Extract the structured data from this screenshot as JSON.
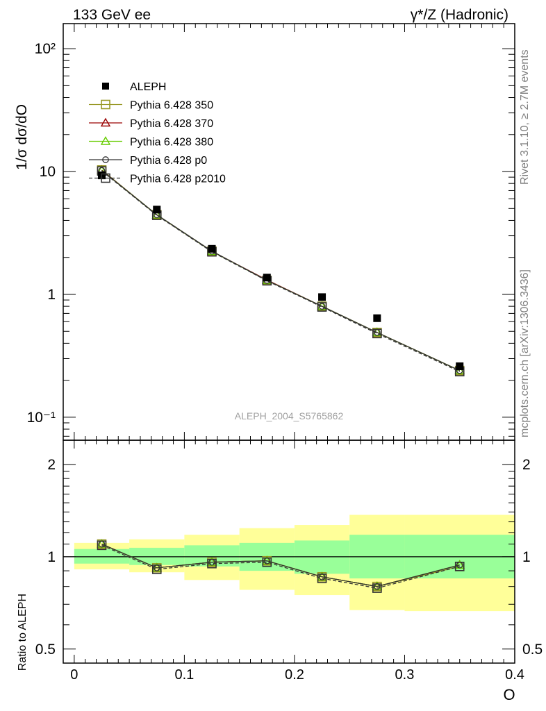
{
  "header": {
    "left": "133 GeV ee",
    "right": "γ*/Z (Hadronic)"
  },
  "side_labels": {
    "rivet": "Rivet 3.1.10, ≥ 2.7M events",
    "mcplots": "mcplots.cern.ch [arXiv:1306.3436]"
  },
  "watermark": "ALEPH_2004_S5765862",
  "colors": {
    "data": "#000000",
    "p350": "#999926",
    "p370": "#990000",
    "p380": "#66cc00",
    "p0": "#333333",
    "p2010": "#333333",
    "band_inner": "#99ff99",
    "band_outer": "#ffff99"
  },
  "chart_data": [
    {
      "type": "line",
      "ylabel": "1/σ  dσ/dO",
      "yscale": "log",
      "ylim": [
        0.065,
        160
      ],
      "xlim": [
        -0.01,
        0.4
      ],
      "y_tick_labels": [
        "10⁻¹",
        "1",
        "10",
        "10²"
      ],
      "legend_position": "top-left",
      "data": {
        "name": "ALEPH",
        "x": [
          0.025,
          0.075,
          0.125,
          0.175,
          0.225,
          0.275,
          0.35
        ],
        "y": [
          9.3,
          4.9,
          2.35,
          1.37,
          0.95,
          0.64,
          0.26
        ]
      },
      "series": [
        {
          "name": "Pythia 6.428 350",
          "key": "p350",
          "marker": "square-open",
          "x": [
            0.025,
            0.075,
            0.125,
            0.175,
            0.225,
            0.275,
            0.35
          ],
          "y": [
            10.3,
            4.45,
            2.25,
            1.3,
            0.8,
            0.49,
            0.24
          ]
        },
        {
          "name": "Pythia 6.428 370",
          "key": "p370",
          "marker": "triangle-open",
          "x": [
            0.025,
            0.075,
            0.125,
            0.175,
            0.225,
            0.275,
            0.35
          ],
          "y": [
            10.25,
            4.43,
            2.24,
            1.31,
            0.8,
            0.49,
            0.24
          ]
        },
        {
          "name": "Pythia 6.428 380",
          "key": "p380",
          "marker": "triangle-open",
          "x": [
            0.025,
            0.075,
            0.125,
            0.175,
            0.225,
            0.275,
            0.35
          ],
          "y": [
            10.2,
            4.44,
            2.24,
            1.3,
            0.8,
            0.49,
            0.24
          ]
        },
        {
          "name": "Pythia 6.428 p0",
          "key": "p0",
          "marker": "circle-open",
          "x": [
            0.025,
            0.075,
            0.125,
            0.175,
            0.225,
            0.275,
            0.35
          ],
          "y": [
            10.2,
            4.45,
            2.25,
            1.3,
            0.8,
            0.49,
            0.24
          ]
        },
        {
          "name": "Pythia 6.428 p2010",
          "key": "p2010",
          "marker": "square-open",
          "dashed": true,
          "x": [
            0.025,
            0.075,
            0.125,
            0.175,
            0.225,
            0.275,
            0.35
          ],
          "y": [
            10.1,
            4.4,
            2.22,
            1.29,
            0.79,
            0.48,
            0.235
          ]
        }
      ]
    },
    {
      "type": "line",
      "ylabel": "Ratio to ALEPH",
      "xlabel": "O",
      "yscale": "log",
      "ylim": [
        0.45,
        2.4
      ],
      "xlim": [
        -0.01,
        0.4
      ],
      "y_tick_labels": [
        "0.5",
        "1",
        "2"
      ],
      "x_tick_labels": [
        "0",
        "0.1",
        "0.2",
        "0.3",
        "0.4"
      ],
      "bands": {
        "x_edges": [
          0.0,
          0.05,
          0.1,
          0.15,
          0.2,
          0.25,
          0.3,
          0.4
        ],
        "inner_low": [
          0.95,
          0.94,
          0.93,
          0.9,
          0.88,
          0.85,
          0.85
        ],
        "inner_high": [
          1.06,
          1.07,
          1.09,
          1.11,
          1.13,
          1.18,
          1.18
        ],
        "outer_low": [
          0.91,
          0.89,
          0.84,
          0.78,
          0.75,
          0.67,
          0.665
        ],
        "outer_high": [
          1.11,
          1.14,
          1.18,
          1.24,
          1.27,
          1.37,
          1.37
        ]
      },
      "series": [
        {
          "name": "Pythia 6.428 350",
          "key": "p350",
          "marker": "square-open",
          "x": [
            0.025,
            0.075,
            0.125,
            0.175,
            0.225,
            0.275,
            0.35
          ],
          "y": [
            1.1,
            0.92,
            0.96,
            0.97,
            0.86,
            0.8,
            0.93
          ]
        },
        {
          "name": "Pythia 6.428 370",
          "key": "p370",
          "marker": "triangle-open",
          "x": [
            0.025,
            0.075,
            0.125,
            0.175,
            0.225,
            0.275,
            0.35
          ],
          "y": [
            1.1,
            0.92,
            0.96,
            0.97,
            0.86,
            0.8,
            0.94
          ]
        },
        {
          "name": "Pythia 6.428 380",
          "key": "p380",
          "marker": "triangle-open",
          "x": [
            0.025,
            0.075,
            0.125,
            0.175,
            0.225,
            0.275,
            0.35
          ],
          "y": [
            1.1,
            0.92,
            0.96,
            0.97,
            0.86,
            0.8,
            0.94
          ]
        },
        {
          "name": "Pythia 6.428 p0",
          "key": "p0",
          "marker": "circle-open",
          "x": [
            0.025,
            0.075,
            0.125,
            0.175,
            0.225,
            0.275,
            0.35
          ],
          "y": [
            1.1,
            0.92,
            0.96,
            0.97,
            0.86,
            0.8,
            0.94
          ]
        },
        {
          "name": "Pythia 6.428 p2010",
          "key": "p2010",
          "marker": "square-open",
          "dashed": true,
          "x": [
            0.025,
            0.075,
            0.125,
            0.175,
            0.225,
            0.275,
            0.35
          ],
          "y": [
            1.09,
            0.91,
            0.95,
            0.96,
            0.85,
            0.79,
            0.93
          ]
        }
      ]
    }
  ]
}
